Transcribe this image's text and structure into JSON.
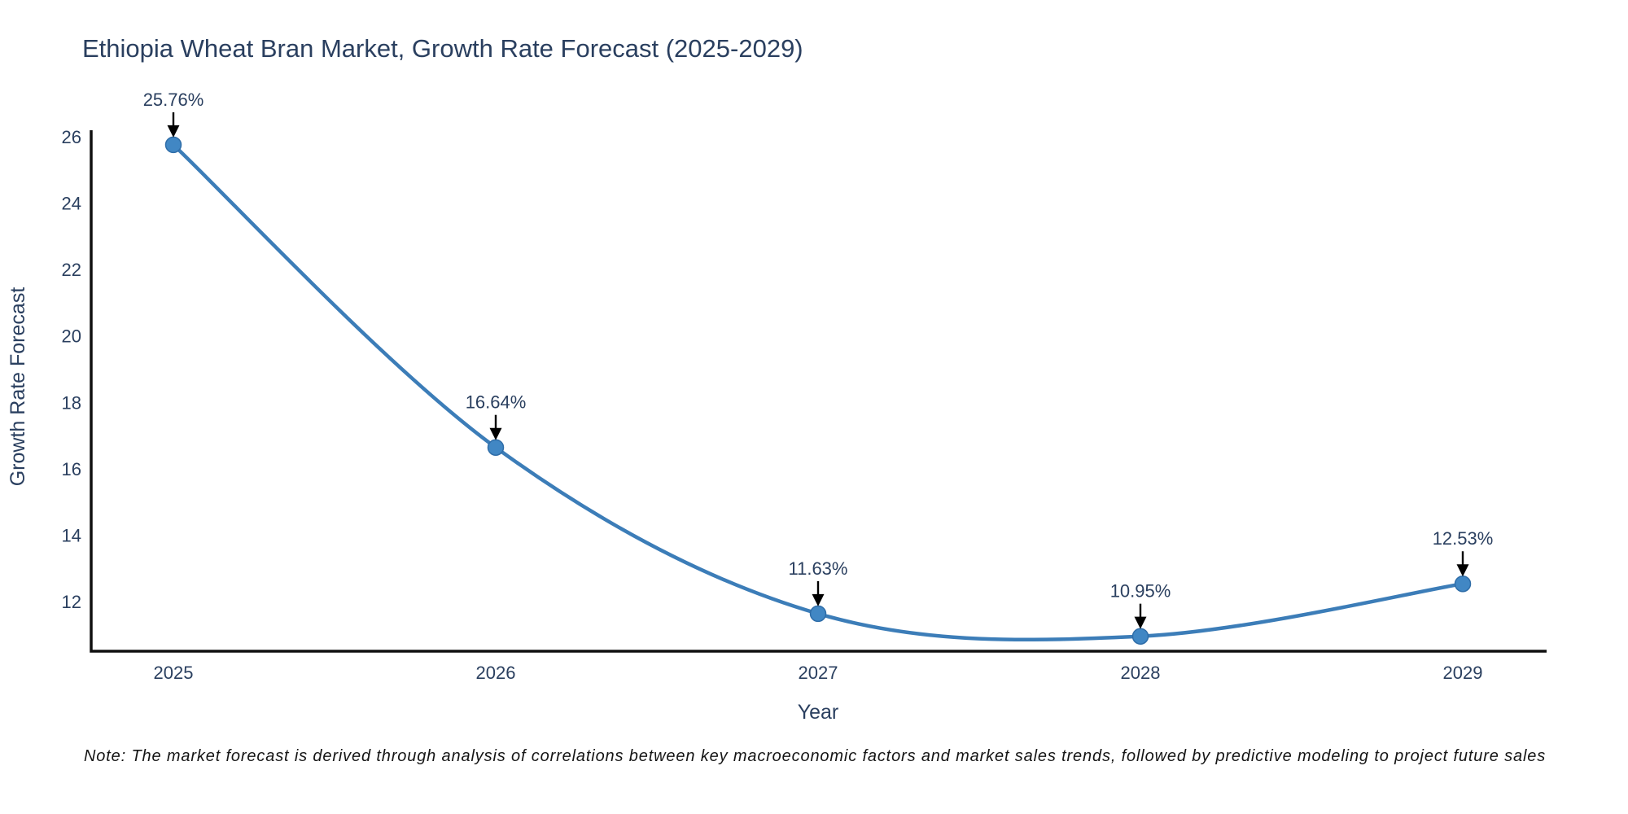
{
  "page": {
    "background": "#ffffff"
  },
  "note": {
    "text": "Note: The market forecast is derived through analysis of correlations between key macroeconomic factors and market sales trends, followed by predictive modeling to project future sales"
  },
  "chart_data": {
    "type": "line",
    "title": "Ethiopia Wheat Bran Market, Growth Rate Forecast (2025-2029)",
    "xlabel": "Year",
    "ylabel": "Growth Rate Forecast",
    "categories": [
      "2025",
      "2026",
      "2027",
      "2028",
      "2029"
    ],
    "x": [
      2025,
      2026,
      2027,
      2028,
      2029
    ],
    "series": [
      {
        "name": "Growth Rate Forecast",
        "values": [
          25.76,
          16.64,
          11.63,
          10.95,
          12.53
        ]
      }
    ],
    "point_labels": [
      "25.76%",
      "16.64%",
      "11.63%",
      "10.95%",
      "12.53%"
    ],
    "yticks": [
      12,
      14,
      16,
      18,
      20,
      22,
      24,
      26
    ],
    "ylim": [
      10.5,
      26.2
    ],
    "xlim": [
      2024.74,
      2029.26
    ],
    "grid": false,
    "legend": "none",
    "line_shape": "spline",
    "annotation_arrows": true,
    "colors": {
      "line": "#3c7db8",
      "marker_fill": "#4187c4",
      "marker_edge": "#2f6da8",
      "axis_line": "#101010",
      "tick_text": "#2a3f5f",
      "title_text": "#2a3f5f",
      "annotation_text": "#2a3f5f",
      "arrow": "#000000",
      "note_text": "#151515",
      "background": "#ffffff"
    }
  }
}
